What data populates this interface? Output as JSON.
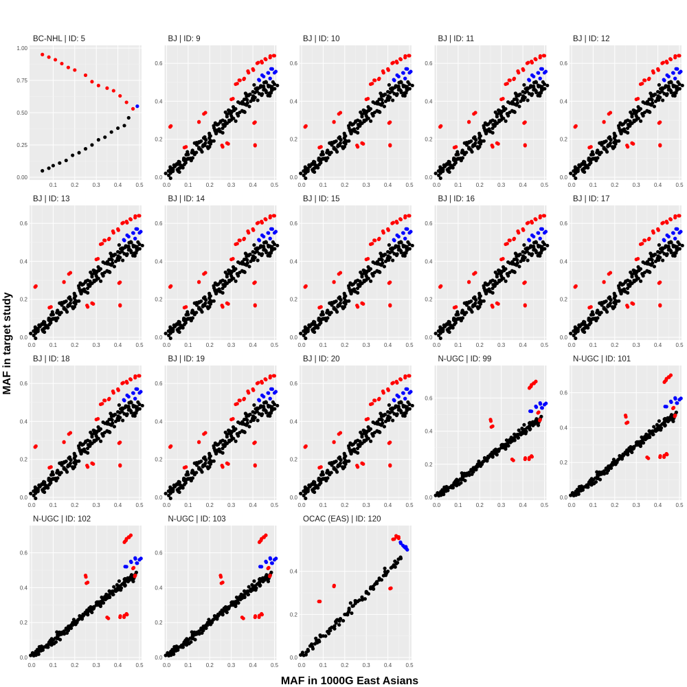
{
  "figure": {
    "xlabel": "MAF in 1000G East Asians",
    "ylabel": "MAF in target study"
  },
  "colors": {
    "panel_bg": "#ebebeb",
    "grid_major": "#ffffff",
    "grid_minor": "#f4f4f4",
    "concordant": "#000000",
    "flagged": "#ff0000",
    "flagged_alt": "#0000ff"
  },
  "chart_data": [
    {
      "type": "scatter",
      "title": "BC-NHL | ID: 5",
      "xlim": [
        0.0,
        0.5
      ],
      "ylim": [
        0.0,
        1.0
      ],
      "x_ticks": [
        "0.1",
        "0.2",
        "0.3",
        "0.4",
        "0.5"
      ],
      "y_ticks": [
        "0.00",
        "0.25",
        "0.50",
        "0.75",
        "1.00"
      ],
      "grid": true,
      "series": [
        {
          "color": "black",
          "points": [
            [
              0.05,
              0.05
            ],
            [
              0.08,
              0.07
            ],
            [
              0.1,
              0.09
            ],
            [
              0.13,
              0.11
            ],
            [
              0.16,
              0.13
            ],
            [
              0.19,
              0.17
            ],
            [
              0.22,
              0.19
            ],
            [
              0.25,
              0.22
            ],
            [
              0.28,
              0.25
            ],
            [
              0.31,
              0.29
            ],
            [
              0.34,
              0.31
            ],
            [
              0.37,
              0.35
            ],
            [
              0.4,
              0.38
            ],
            [
              0.43,
              0.4
            ],
            [
              0.45,
              0.46
            ]
          ]
        },
        {
          "color": "red",
          "points": [
            [
              0.05,
              0.95
            ],
            [
              0.08,
              0.93
            ],
            [
              0.11,
              0.91
            ],
            [
              0.14,
              0.88
            ],
            [
              0.17,
              0.85
            ],
            [
              0.2,
              0.83
            ],
            [
              0.25,
              0.79
            ],
            [
              0.28,
              0.74
            ],
            [
              0.31,
              0.71
            ],
            [
              0.35,
              0.69
            ],
            [
              0.38,
              0.67
            ],
            [
              0.41,
              0.63
            ],
            [
              0.44,
              0.58
            ],
            [
              0.47,
              0.53
            ]
          ]
        },
        {
          "color": "blue",
          "points": [
            [
              0.49,
              0.55
            ]
          ]
        }
      ]
    },
    {
      "type": "scatter",
      "title": "BJ | ID: 9",
      "profile": "BJ",
      "xlim": [
        0,
        0.5
      ],
      "ylim": [
        0,
        0.68
      ],
      "x_ticks": [
        "0.0",
        "0.1",
        "0.2",
        "0.3",
        "0.4",
        "0.5"
      ],
      "y_ticks": [
        "0.0",
        "0.2",
        "0.4",
        "0.6"
      ],
      "grid": true
    },
    {
      "type": "scatter",
      "title": "BJ | ID: 10",
      "profile": "BJ",
      "xlim": [
        0,
        0.5
      ],
      "ylim": [
        0,
        0.68
      ],
      "x_ticks": [
        "0.0",
        "0.1",
        "0.2",
        "0.3",
        "0.4",
        "0.5"
      ],
      "y_ticks": [
        "0.0",
        "0.2",
        "0.4",
        "0.6"
      ],
      "grid": true
    },
    {
      "type": "scatter",
      "title": "BJ | ID: 11",
      "profile": "BJ",
      "xlim": [
        0,
        0.5
      ],
      "ylim": [
        0,
        0.68
      ],
      "x_ticks": [
        "0.0",
        "0.1",
        "0.2",
        "0.3",
        "0.4",
        "0.5"
      ],
      "y_ticks": [
        "0.0",
        "0.2",
        "0.4",
        "0.6"
      ],
      "grid": true
    },
    {
      "type": "scatter",
      "title": "BJ | ID: 12",
      "profile": "BJ",
      "xlim": [
        0,
        0.5
      ],
      "ylim": [
        0,
        0.68
      ],
      "x_ticks": [
        "0.0",
        "0.1",
        "0.2",
        "0.3",
        "0.4",
        "0.5"
      ],
      "y_ticks": [
        "0.0",
        "0.2",
        "0.4",
        "0.6"
      ],
      "grid": true
    },
    {
      "type": "scatter",
      "title": "BJ | ID: 13",
      "profile": "BJ",
      "xlim": [
        0,
        0.5
      ],
      "ylim": [
        0,
        0.68
      ],
      "x_ticks": [
        "0.0",
        "0.1",
        "0.2",
        "0.3",
        "0.4",
        "0.5"
      ],
      "y_ticks": [
        "0.0",
        "0.2",
        "0.4",
        "0.6"
      ],
      "grid": true
    },
    {
      "type": "scatter",
      "title": "BJ | ID: 14",
      "profile": "BJ",
      "xlim": [
        0,
        0.5
      ],
      "ylim": [
        0,
        0.68
      ],
      "x_ticks": [
        "0.0",
        "0.1",
        "0.2",
        "0.3",
        "0.4",
        "0.5"
      ],
      "y_ticks": [
        "0.0",
        "0.2",
        "0.4",
        "0.6"
      ],
      "grid": true
    },
    {
      "type": "scatter",
      "title": "BJ | ID: 15",
      "profile": "BJ",
      "xlim": [
        0,
        0.5
      ],
      "ylim": [
        0,
        0.68
      ],
      "x_ticks": [
        "0.0",
        "0.1",
        "0.2",
        "0.3",
        "0.4",
        "0.5"
      ],
      "y_ticks": [
        "0.0",
        "0.2",
        "0.4",
        "0.6"
      ],
      "grid": true
    },
    {
      "type": "scatter",
      "title": "BJ | ID: 16",
      "profile": "BJ",
      "xlim": [
        0,
        0.5
      ],
      "ylim": [
        0,
        0.68
      ],
      "x_ticks": [
        "0.0",
        "0.1",
        "0.2",
        "0.3",
        "0.4",
        "0.5"
      ],
      "y_ticks": [
        "0.0",
        "0.2",
        "0.4",
        "0.6"
      ],
      "grid": true
    },
    {
      "type": "scatter",
      "title": "BJ | ID: 17",
      "profile": "BJ",
      "xlim": [
        0,
        0.5
      ],
      "ylim": [
        0,
        0.68
      ],
      "x_ticks": [
        "0.0",
        "0.1",
        "0.2",
        "0.3",
        "0.4",
        "0.5"
      ],
      "y_ticks": [
        "0.0",
        "0.2",
        "0.4",
        "0.6"
      ],
      "grid": true
    },
    {
      "type": "scatter",
      "title": "BJ | ID: 18",
      "profile": "BJ",
      "xlim": [
        0,
        0.5
      ],
      "ylim": [
        0,
        0.68
      ],
      "x_ticks": [
        "0.0",
        "0.1",
        "0.2",
        "0.3",
        "0.4",
        "0.5"
      ],
      "y_ticks": [
        "0.0",
        "0.2",
        "0.4",
        "0.6"
      ],
      "grid": true
    },
    {
      "type": "scatter",
      "title": "BJ | ID: 19",
      "profile": "BJ",
      "xlim": [
        0,
        0.5
      ],
      "ylim": [
        0,
        0.68
      ],
      "x_ticks": [
        "0.0",
        "0.1",
        "0.2",
        "0.3",
        "0.4",
        "0.5"
      ],
      "y_ticks": [
        "0.0",
        "0.2",
        "0.4",
        "0.6"
      ],
      "grid": true
    },
    {
      "type": "scatter",
      "title": "BJ | ID: 20",
      "profile": "BJ",
      "xlim": [
        0,
        0.5
      ],
      "ylim": [
        0,
        0.68
      ],
      "x_ticks": [
        "0.0",
        "0.1",
        "0.2",
        "0.3",
        "0.4",
        "0.5"
      ],
      "y_ticks": [
        "0.0",
        "0.2",
        "0.4",
        "0.6"
      ],
      "grid": true
    },
    {
      "type": "scatter",
      "title": "N-UGC | ID: 99",
      "profile": "NUGC",
      "xlim": [
        0,
        0.5
      ],
      "ylim": [
        0,
        0.78
      ],
      "x_ticks": [
        "0.0",
        "0.1",
        "0.2",
        "0.3",
        "0.4",
        "0.5"
      ],
      "y_ticks": [
        "0.0",
        "0.2",
        "0.4",
        "0.6"
      ],
      "grid": true
    },
    {
      "type": "scatter",
      "title": "N-UGC | ID: 101",
      "profile": "NUGC",
      "xlim": [
        0,
        0.5
      ],
      "ylim": [
        0,
        0.74
      ],
      "x_ticks": [
        "0.0",
        "0.1",
        "0.2",
        "0.3",
        "0.4",
        "0.5"
      ],
      "y_ticks": [
        "0.0",
        "0.2",
        "0.4",
        "0.6"
      ],
      "grid": true
    },
    {
      "type": "scatter",
      "title": "N-UGC | ID: 102",
      "profile": "NUGC",
      "xlim": [
        0,
        0.5
      ],
      "ylim": [
        0,
        0.74
      ],
      "x_ticks": [
        "0.0",
        "0.1",
        "0.2",
        "0.3",
        "0.4",
        "0.5"
      ],
      "y_ticks": [
        "0.0",
        "0.2",
        "0.4",
        "0.6"
      ],
      "grid": true
    },
    {
      "type": "scatter",
      "title": "N-UGC | ID: 103",
      "profile": "NUGC",
      "xlim": [
        0,
        0.5
      ],
      "ylim": [
        0,
        0.74
      ],
      "x_ticks": [
        "0.0",
        "0.1",
        "0.2",
        "0.3",
        "0.4",
        "0.5"
      ],
      "y_ticks": [
        "0.0",
        "0.2",
        "0.4",
        "0.6"
      ],
      "grid": true
    },
    {
      "type": "scatter",
      "title": "OCAC (EAS) | ID: 120",
      "profile": "OCAC",
      "xlim": [
        0,
        0.5
      ],
      "ylim": [
        0,
        0.6
      ],
      "x_ticks": [
        "0.0",
        "0.1",
        "0.2",
        "0.3",
        "0.4",
        "0.5"
      ],
      "y_ticks": [
        "0.0",
        "0.2",
        "0.4"
      ],
      "grid": true
    }
  ],
  "profiles": {
    "BJ": {
      "black": [
        [
          0.01,
          0.01
        ],
        [
          0.02,
          0.03
        ],
        [
          0.03,
          0.04
        ],
        [
          0.04,
          0.06
        ],
        [
          0.05,
          0.04
        ],
        [
          0.06,
          0.08
        ],
        [
          0.07,
          0.06
        ],
        [
          0.08,
          0.1
        ],
        [
          0.09,
          0.09
        ],
        [
          0.1,
          0.12
        ],
        [
          0.11,
          0.1
        ],
        [
          0.12,
          0.14
        ],
        [
          0.13,
          0.12
        ],
        [
          0.14,
          0.17
        ],
        [
          0.15,
          0.15
        ],
        [
          0.16,
          0.19
        ],
        [
          0.17,
          0.17
        ],
        [
          0.18,
          0.2
        ],
        [
          0.19,
          0.16
        ],
        [
          0.2,
          0.22
        ],
        [
          0.21,
          0.19
        ],
        [
          0.22,
          0.26
        ],
        [
          0.23,
          0.23
        ],
        [
          0.24,
          0.28
        ],
        [
          0.25,
          0.24
        ],
        [
          0.26,
          0.3
        ],
        [
          0.27,
          0.27
        ],
        [
          0.28,
          0.33
        ],
        [
          0.29,
          0.3
        ],
        [
          0.3,
          0.34
        ],
        [
          0.31,
          0.31
        ],
        [
          0.32,
          0.36
        ],
        [
          0.33,
          0.33
        ],
        [
          0.34,
          0.39
        ],
        [
          0.35,
          0.35
        ],
        [
          0.36,
          0.41
        ],
        [
          0.37,
          0.38
        ],
        [
          0.38,
          0.43
        ],
        [
          0.39,
          0.4
        ],
        [
          0.4,
          0.45
        ],
        [
          0.41,
          0.42
        ],
        [
          0.42,
          0.47
        ],
        [
          0.43,
          0.44
        ],
        [
          0.44,
          0.48
        ],
        [
          0.45,
          0.46
        ],
        [
          0.46,
          0.5
        ],
        [
          0.47,
          0.43
        ],
        [
          0.48,
          0.48
        ],
        [
          0.49,
          0.46
        ],
        [
          0.5,
          0.49
        ]
      ],
      "red": [
        [
          0.02,
          0.27
        ],
        [
          0.09,
          0.16
        ],
        [
          0.15,
          0.29
        ],
        [
          0.18,
          0.34
        ],
        [
          0.26,
          0.16
        ],
        [
          0.28,
          0.18
        ],
        [
          0.3,
          0.41
        ],
        [
          0.32,
          0.49
        ],
        [
          0.34,
          0.51
        ],
        [
          0.36,
          0.52
        ],
        [
          0.38,
          0.55
        ],
        [
          0.4,
          0.57
        ],
        [
          0.41,
          0.29
        ],
        [
          0.42,
          0.6
        ],
        [
          0.44,
          0.61
        ],
        [
          0.46,
          0.62
        ],
        [
          0.48,
          0.63
        ],
        [
          0.5,
          0.64
        ],
        [
          0.41,
          0.17
        ]
      ],
      "blue": [
        [
          0.43,
          0.51
        ],
        [
          0.45,
          0.53
        ],
        [
          0.47,
          0.55
        ],
        [
          0.48,
          0.52
        ],
        [
          0.49,
          0.57
        ],
        [
          0.5,
          0.55
        ]
      ]
    },
    "NUGC": {
      "black": [
        [
          0.01,
          0.01
        ],
        [
          0.02,
          0.02
        ],
        [
          0.03,
          0.03
        ],
        [
          0.04,
          0.04
        ],
        [
          0.05,
          0.05
        ],
        [
          0.06,
          0.06
        ],
        [
          0.07,
          0.07
        ],
        [
          0.08,
          0.08
        ],
        [
          0.09,
          0.09
        ],
        [
          0.1,
          0.1
        ],
        [
          0.11,
          0.11
        ],
        [
          0.12,
          0.12
        ],
        [
          0.13,
          0.13
        ],
        [
          0.14,
          0.14
        ],
        [
          0.15,
          0.15
        ],
        [
          0.16,
          0.16
        ],
        [
          0.17,
          0.17
        ],
        [
          0.18,
          0.18
        ],
        [
          0.19,
          0.19
        ],
        [
          0.2,
          0.2
        ],
        [
          0.21,
          0.2
        ],
        [
          0.22,
          0.22
        ],
        [
          0.23,
          0.23
        ],
        [
          0.24,
          0.24
        ],
        [
          0.25,
          0.25
        ],
        [
          0.26,
          0.26
        ],
        [
          0.27,
          0.27
        ],
        [
          0.28,
          0.28
        ],
        [
          0.29,
          0.29
        ],
        [
          0.3,
          0.3
        ],
        [
          0.31,
          0.31
        ],
        [
          0.32,
          0.32
        ],
        [
          0.33,
          0.33
        ],
        [
          0.34,
          0.34
        ],
        [
          0.35,
          0.35
        ],
        [
          0.36,
          0.36
        ],
        [
          0.37,
          0.37
        ],
        [
          0.38,
          0.38
        ],
        [
          0.39,
          0.39
        ],
        [
          0.4,
          0.4
        ],
        [
          0.41,
          0.41
        ],
        [
          0.42,
          0.42
        ],
        [
          0.43,
          0.43
        ],
        [
          0.44,
          0.44
        ],
        [
          0.45,
          0.45
        ],
        [
          0.46,
          0.46
        ],
        [
          0.47,
          0.44
        ],
        [
          0.48,
          0.47
        ]
      ],
      "red": [
        [
          0.25,
          0.47
        ],
        [
          0.26,
          0.43
        ],
        [
          0.35,
          0.23
        ],
        [
          0.41,
          0.23
        ],
        [
          0.43,
          0.24
        ],
        [
          0.44,
          0.25
        ],
        [
          0.43,
          0.66
        ],
        [
          0.44,
          0.68
        ],
        [
          0.45,
          0.69
        ],
        [
          0.46,
          0.7
        ],
        [
          0.47,
          0.51
        ],
        [
          0.48,
          0.47
        ]
      ],
      "blue": [
        [
          0.44,
          0.52
        ],
        [
          0.46,
          0.55
        ],
        [
          0.48,
          0.57
        ],
        [
          0.49,
          0.54
        ],
        [
          0.5,
          0.56
        ]
      ]
    },
    "OCAC": {
      "black": [
        [
          0.01,
          0.01
        ],
        [
          0.03,
          0.03
        ],
        [
          0.05,
          0.05
        ],
        [
          0.07,
          0.07
        ],
        [
          0.08,
          0.08
        ],
        [
          0.1,
          0.1
        ],
        [
          0.12,
          0.12
        ],
        [
          0.14,
          0.14
        ],
        [
          0.16,
          0.16
        ],
        [
          0.18,
          0.18
        ],
        [
          0.2,
          0.2
        ],
        [
          0.22,
          0.22
        ],
        [
          0.24,
          0.24
        ],
        [
          0.26,
          0.26
        ],
        [
          0.28,
          0.28
        ],
        [
          0.3,
          0.3
        ],
        [
          0.32,
          0.32
        ],
        [
          0.34,
          0.34
        ],
        [
          0.36,
          0.36
        ],
        [
          0.38,
          0.38
        ],
        [
          0.4,
          0.4
        ],
        [
          0.42,
          0.42
        ],
        [
          0.44,
          0.44
        ],
        [
          0.46,
          0.46
        ]
      ],
      "red": [
        [
          0.08,
          0.26
        ],
        [
          0.15,
          0.33
        ],
        [
          0.41,
          0.32
        ],
        [
          0.43,
          0.55
        ],
        [
          0.44,
          0.56
        ],
        [
          0.45,
          0.56
        ]
      ],
      "blue": [
        [
          0.46,
          0.53
        ],
        [
          0.47,
          0.52
        ],
        [
          0.48,
          0.51
        ],
        [
          0.49,
          0.5
        ]
      ]
    }
  }
}
